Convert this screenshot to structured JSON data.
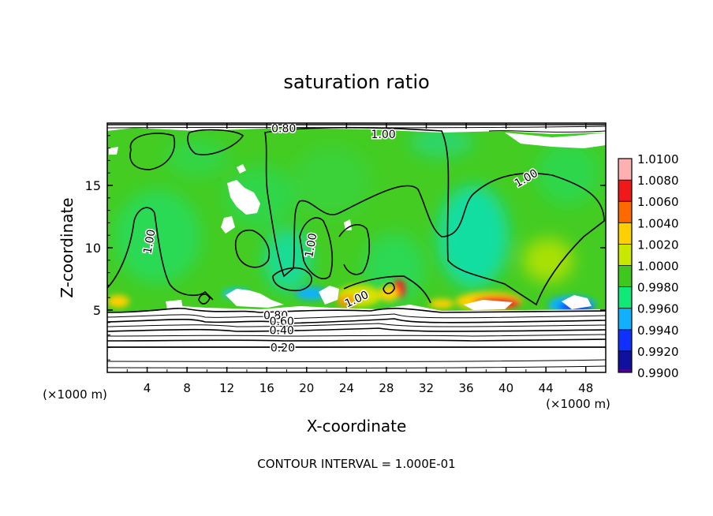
{
  "chart_data": {
    "type": "heatmap",
    "title": "saturation ratio",
    "xlabel": "X-coordinate",
    "ylabel": "Z-coordinate",
    "x_unit_left": "(×1000 m)",
    "x_unit_right": "(×1000 m)",
    "footer": "CONTOUR INTERVAL = 1.000E-01",
    "xlim": [
      0,
      50
    ],
    "ylim": [
      0,
      20
    ],
    "x_ticks": [
      4,
      8,
      12,
      16,
      20,
      24,
      28,
      32,
      36,
      40,
      44,
      48
    ],
    "y_ticks": [
      5,
      10,
      15
    ],
    "colorbar": {
      "levels": [
        "1.0100",
        "1.0080",
        "1.0060",
        "1.0040",
        "1.0020",
        "1.0000",
        "0.9980",
        "0.9960",
        "0.9940",
        "0.9920",
        "0.9900"
      ],
      "colors": [
        "#ffb0b0",
        "#f01818",
        "#ff6a00",
        "#ffd000",
        "#c8e800",
        "#3ec81e",
        "#10e878",
        "#10b0ff",
        "#1030ff",
        "#1010a0",
        "#500090"
      ],
      "range": [
        0.99,
        1.01
      ]
    },
    "contour_labels": [
      {
        "text": "0.80",
        "x": 17.7,
        "y": 19.6
      },
      {
        "text": "1.00",
        "x": 27.7,
        "y": 19.1
      },
      {
        "text": "1.00",
        "x": 42.0,
        "y": 15.6
      },
      {
        "text": "1.00",
        "x": 4.2,
        "y": 10.5
      },
      {
        "text": "1.00",
        "x": 20.4,
        "y": 10.2
      },
      {
        "text": "1.00",
        "x": 25.0,
        "y": 5.9
      },
      {
        "text": "0.80",
        "x": 16.9,
        "y": 4.6
      },
      {
        "text": "0.60",
        "x": 17.5,
        "y": 4.1
      },
      {
        "text": "0.40",
        "x": 17.5,
        "y": 3.4
      },
      {
        "text": "0.20",
        "x": 17.6,
        "y": 2.0
      }
    ]
  }
}
